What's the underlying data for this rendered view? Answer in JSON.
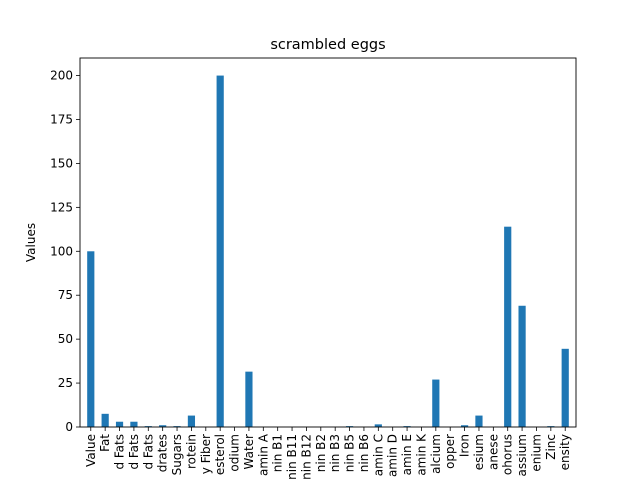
{
  "chart_data": {
    "type": "bar",
    "title": "scrambled eggs",
    "xlabel": "",
    "ylabel": "Values",
    "ylim": [
      0,
      210
    ],
    "yticks": [
      0,
      25,
      50,
      75,
      100,
      125,
      150,
      175,
      200
    ],
    "grid": false,
    "legend": "none",
    "bar_color": "#1f77b4",
    "categories": [
      "Value",
      "Fat",
      "d Fats",
      "d Fats",
      "d Fats",
      "drates",
      "Sugars",
      "rotein",
      "y Fiber",
      "esterol",
      "odium",
      "Water",
      "amin A",
      "nin B1",
      "nin B11",
      "nin B12",
      "nin B2",
      "nin B3",
      "nin B5",
      "nin B6",
      "amin C",
      "amin D",
      "amin E",
      "amin K",
      "alcium",
      "opper",
      "Iron",
      "esium",
      "anese",
      "ohorus",
      "assium",
      "enium",
      "Zinc",
      "ensity"
    ],
    "values": [
      100,
      7.5,
      3.0,
      3.0,
      0.5,
      1.0,
      0.5,
      6.5,
      0,
      200,
      0,
      31.5,
      0,
      0,
      0,
      0,
      0,
      0,
      0.5,
      0,
      1.5,
      0,
      0.5,
      0,
      27,
      0,
      1.0,
      6.5,
      0,
      114,
      69,
      0,
      0.5,
      44.5
    ]
  }
}
